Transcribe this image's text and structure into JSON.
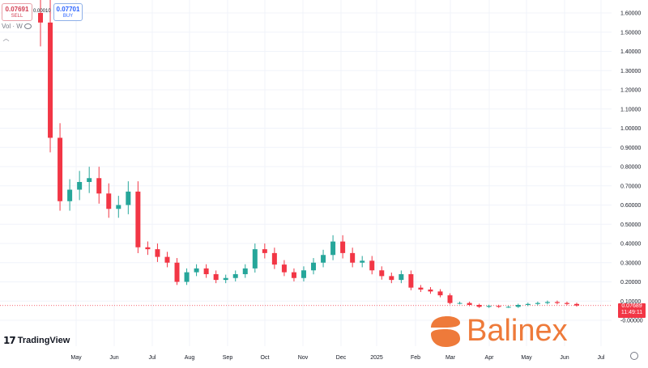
{
  "sell": {
    "price": "0.07691",
    "label": "SELL"
  },
  "buy": {
    "price": "0.07701",
    "label": "BUY"
  },
  "spread": "0.00010",
  "volume_label": "Vol · W",
  "last_price": {
    "value": "0.07689",
    "countdown": "11:49:11"
  },
  "logos": {
    "tradingview": "TradingView",
    "tradingview_mark": "17",
    "broker": "Balinex"
  },
  "colors": {
    "up": "#26a69a",
    "down": "#f23645",
    "grid": "#f0f3fa",
    "axis_text": "#131722",
    "brand": "#ee7a3a"
  },
  "chart_data": {
    "type": "candlestick",
    "title": "",
    "xlabel": "",
    "ylabel": "",
    "ylim": [
      -0.05,
      1.65
    ],
    "y_ticks": [
      "1.60000",
      "1.50000",
      "1.40000",
      "1.30000",
      "1.20000",
      "1.10000",
      "1.00000",
      "0.90000",
      "0.80000",
      "0.70000",
      "0.60000",
      "0.50000",
      "0.40000",
      "0.30000",
      "0.20000",
      "0.10000",
      "-0.00000"
    ],
    "x_ticks": [
      "May",
      "Jun",
      "Jul",
      "Aug",
      "Sep",
      "Oct",
      "Nov",
      "Dec",
      "2025",
      "Feb",
      "Mar",
      "Apr",
      "May",
      "Jun",
      "Jul"
    ],
    "last_price": 0.07689,
    "grid": true,
    "series": [
      {
        "x": [
          "May",
          "May",
          "May",
          "May",
          "May",
          "Jun",
          "Jun",
          "Jun",
          "Jun",
          "Jun",
          "Jul",
          "Jul",
          "Jul",
          "Jul",
          "Aug",
          "Aug",
          "Aug",
          "Aug",
          "Sep",
          "Sep",
          "Sep",
          "Sep",
          "Oct",
          "Oct",
          "Oct",
          "Oct",
          "Nov",
          "Nov",
          "Nov",
          "Nov",
          "Dec",
          "Dec",
          "Dec",
          "Dec",
          "2025",
          "2025",
          "2025",
          "2025",
          "Feb",
          "Feb",
          "Feb",
          "Feb",
          "Mar",
          "Mar",
          "Mar",
          "Mar",
          "Apr",
          "Apr",
          "Apr",
          "Apr",
          "May",
          "May",
          "May",
          "May",
          "Jun",
          "Jun"
        ],
        "values": [
          1.55,
          0.95,
          0.62,
          0.68,
          0.72,
          0.74,
          0.66,
          0.58,
          0.6,
          0.67,
          0.38,
          0.37,
          0.33,
          0.3,
          0.2,
          0.25,
          0.27,
          0.24,
          0.21,
          0.22,
          0.24,
          0.27,
          0.37,
          0.35,
          0.29,
          0.25,
          0.22,
          0.26,
          0.3,
          0.34,
          0.41,
          0.35,
          0.3,
          0.31,
          0.26,
          0.23,
          0.21,
          0.24,
          0.17,
          0.16,
          0.15,
          0.13,
          0.09,
          0.09,
          0.08,
          0.07,
          0.075,
          0.07,
          0.07,
          0.08,
          0.085,
          0.09,
          0.095,
          0.09,
          0.085,
          0.077
        ]
      }
    ]
  }
}
